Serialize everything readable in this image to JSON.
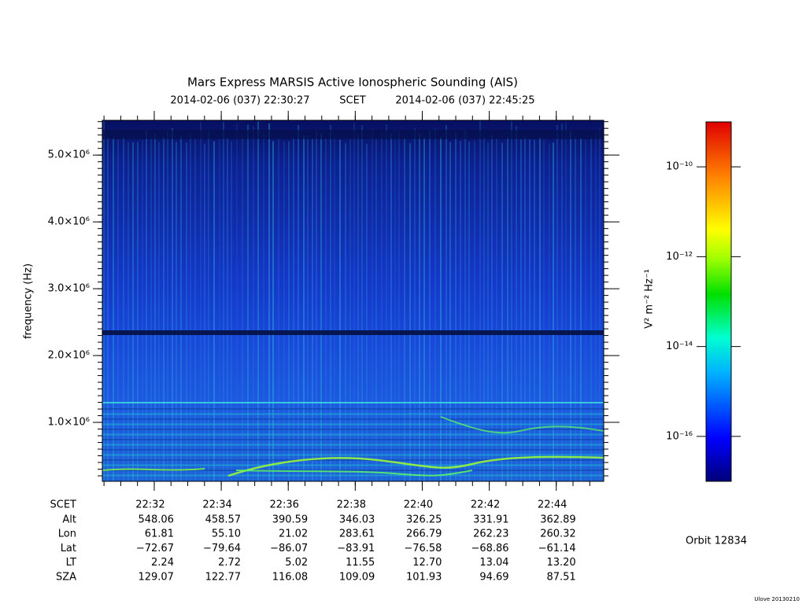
{
  "chart_data": {
    "type": "spectrogram",
    "title": "Mars Express MARSIS Active Ionospheric Sounding (AIS)",
    "subtitle_start": "2014-02-06 (037) 22:30:27",
    "subtitle_frame": "SCET",
    "subtitle_end": "2014-02-06 (037) 22:45:25",
    "ylabel": "frequency (Hz)",
    "xlim": [
      "22:30:27",
      "22:45:25"
    ],
    "xticks": [
      "22:32",
      "22:34",
      "22:36",
      "22:38",
      "22:40",
      "22:42",
      "22:44"
    ],
    "ylim": [
      118000,
      5520000
    ],
    "yticks": [
      {
        "value": 1000000,
        "label": "1.0×10⁶"
      },
      {
        "value": 2000000,
        "label": "2.0×10⁶"
      },
      {
        "value": 3000000,
        "label": "3.0×10⁶"
      },
      {
        "value": 4000000,
        "label": "4.0×10⁶"
      },
      {
        "value": 5000000,
        "label": "5.0×10⁶"
      }
    ],
    "colorbar": {
      "label": "V² m⁻² Hz⁻¹",
      "log": true,
      "lim": [
        1e-17,
        1e-09
      ],
      "ticks": [
        {
          "value": 1e-10,
          "label": "10⁻¹⁰"
        },
        {
          "value": 1e-12,
          "label": "10⁻¹²"
        },
        {
          "value": 1e-14,
          "label": "10⁻¹⁴"
        },
        {
          "value": 1e-16,
          "label": "10⁻¹⁶"
        }
      ]
    },
    "ephemeris": {
      "time_label": "SCET",
      "rows": [
        {
          "label": "Alt",
          "values": [
            "548.06",
            "458.57",
            "390.59",
            "346.03",
            "326.25",
            "331.91",
            "362.89"
          ]
        },
        {
          "label": "Lon",
          "values": [
            "61.81",
            "55.10",
            "21.02",
            "283.61",
            "266.79",
            "262.23",
            "260.32"
          ]
        },
        {
          "label": "Lat",
          "values": [
            "−72.67",
            "−79.64",
            "−86.07",
            "−83.91",
            "−76.58",
            "−68.86",
            "−61.14"
          ]
        },
        {
          "label": "LT",
          "values": [
            "2.24",
            "2.72",
            "5.02",
            "11.55",
            "12.70",
            "13.04",
            "13.20"
          ]
        },
        {
          "label": "SZA",
          "values": [
            "129.07",
            "122.77",
            "116.08",
            "109.09",
            "101.93",
            "94.69",
            "87.51"
          ]
        }
      ]
    },
    "orbit": "Orbit 12834",
    "version": "Ulove 20130210"
  }
}
